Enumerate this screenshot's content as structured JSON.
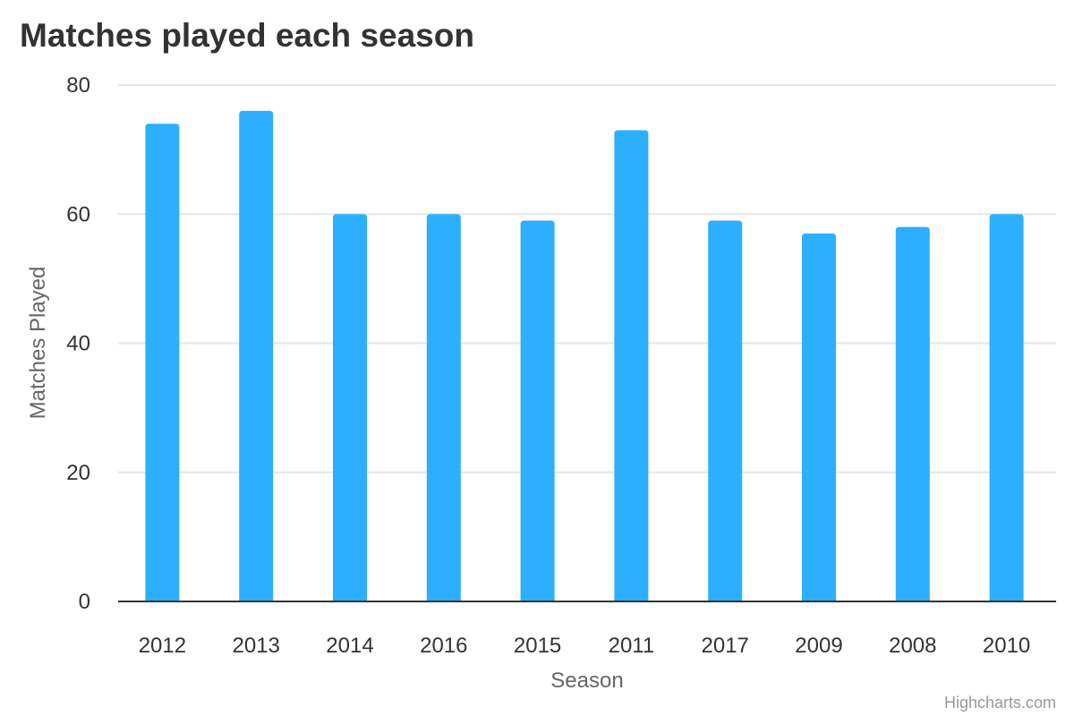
{
  "chart_data": {
    "type": "bar",
    "title": "Matches played each season",
    "xlabel": "Season",
    "ylabel": "Matches Played",
    "categories": [
      "2012",
      "2013",
      "2014",
      "2016",
      "2015",
      "2011",
      "2017",
      "2009",
      "2008",
      "2010"
    ],
    "values": [
      74,
      76,
      60,
      60,
      59,
      73,
      59,
      57,
      58,
      60
    ],
    "ylim": [
      0,
      80
    ],
    "yticks": [
      "0",
      "20",
      "40",
      "60",
      "80"
    ],
    "grid": true,
    "legend": "none",
    "bar_color": "#2caffe"
  },
  "credits": "Highcharts.com"
}
